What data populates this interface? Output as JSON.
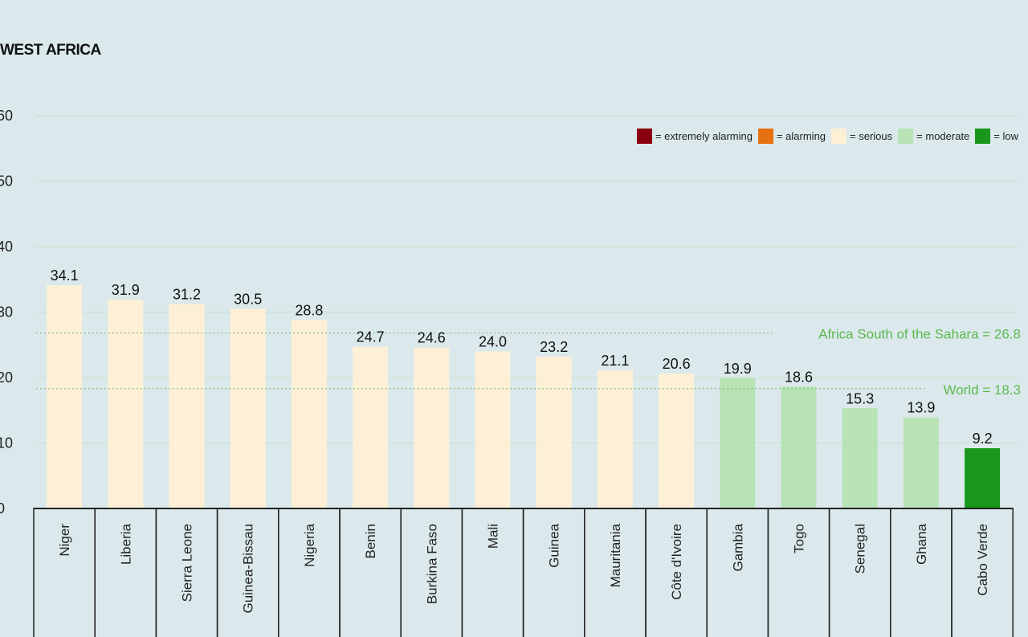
{
  "chart_data": {
    "type": "bar",
    "title": "WEST AFRICA",
    "categories": [
      "Niger",
      "Liberia",
      "Sierra Leone",
      "Guinea-Bissau",
      "Nigeria",
      "Benin",
      "Burkina Faso",
      "Mali",
      "Guinea",
      "Mauritania",
      "Côte d'Ivoire",
      "Gambia",
      "Togo",
      "Senegal",
      "Ghana",
      "Cabo Verde"
    ],
    "values": [
      34.1,
      31.9,
      31.2,
      30.5,
      28.8,
      24.7,
      24.6,
      24.0,
      23.2,
      21.1,
      20.6,
      19.9,
      18.6,
      15.3,
      13.9,
      9.2
    ],
    "value_labels": [
      "34.1",
      "31.9",
      "31.2",
      "30.5",
      "28.8",
      "24.7",
      "24.6",
      "24.0",
      "23.2",
      "21.1",
      "20.6",
      "19.9",
      "18.6",
      "15.3",
      "13.9",
      "9.2"
    ],
    "severity": [
      "serious",
      "serious",
      "serious",
      "serious",
      "serious",
      "serious",
      "serious",
      "serious",
      "serious",
      "serious",
      "serious",
      "moderate",
      "moderate",
      "moderate",
      "moderate",
      "low"
    ],
    "yticks": [
      0,
      10,
      20,
      30,
      40,
      50,
      60
    ],
    "ytick_labels": [
      "0",
      "10",
      "20",
      "30",
      "40",
      "50",
      "60"
    ],
    "ylim": [
      0,
      60
    ],
    "grid": true,
    "reference_lines": [
      {
        "value": 26.8,
        "label": "Africa South of the Sahara = 26.8"
      },
      {
        "value": 18.3,
        "label": "World = 18.3"
      }
    ],
    "legend_position": "top-right",
    "legend": [
      {
        "key": "extremely_alarming",
        "label": "= extremely alarming",
        "color": "#8b0010"
      },
      {
        "key": "alarming",
        "label": "= alarming",
        "color": "#e57110"
      },
      {
        "key": "serious",
        "label": "= serious",
        "color": "#fdf0d6"
      },
      {
        "key": "moderate",
        "label": "= moderate",
        "color": "#b8e3b4"
      },
      {
        "key": "low",
        "label": "= low",
        "color": "#18971a"
      }
    ],
    "colors": {
      "serious": "#fdf0d6",
      "moderate": "#b8e3b4",
      "low": "#18971a",
      "reference_line": "#6cbf5c",
      "background": "#dbe9ec"
    }
  }
}
